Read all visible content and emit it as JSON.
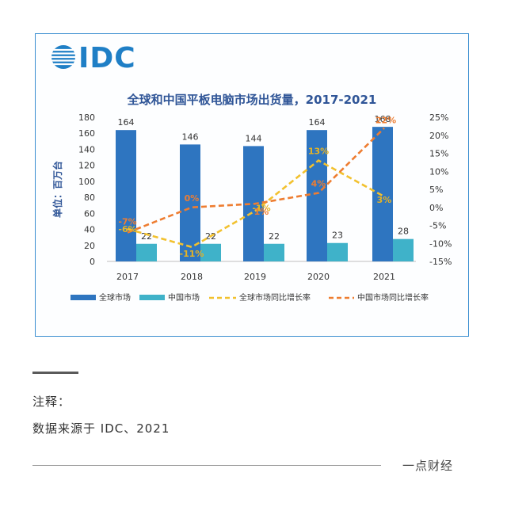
{
  "logo_text": "IDC",
  "chart_data": {
    "type": "bar",
    "title": "全球和中国平板电脑市场出货量，2017-2021",
    "ylabel": "单位：百万台",
    "xlabel": "",
    "categories": [
      "2017",
      "2018",
      "2019",
      "2020",
      "2021"
    ],
    "ylim": [
      0,
      180
    ],
    "yticks": [
      "0",
      "20",
      "40",
      "60",
      "80",
      "100",
      "120",
      "140",
      "160",
      "180"
    ],
    "y2lim": [
      -15,
      25
    ],
    "y2ticks": [
      "-15%",
      "-10%",
      "-5%",
      "0%",
      "5%",
      "10%",
      "15%",
      "20%",
      "25%"
    ],
    "series": [
      {
        "name": "全球市场",
        "kind": "bar",
        "color": "#2e75c0",
        "values": [
          164,
          146,
          144,
          164,
          168
        ],
        "labels": [
          "164",
          "146",
          "144",
          "164",
          "168"
        ]
      },
      {
        "name": "中国市场",
        "kind": "bar",
        "color": "#3fb2c9",
        "values": [
          22,
          22,
          22,
          23,
          28
        ],
        "labels": [
          "22",
          "22",
          "22",
          "23",
          "28"
        ]
      },
      {
        "name": "全球市场同比增长率",
        "kind": "line",
        "axis": "right",
        "color": "#f2c12e",
        "values": [
          -6,
          -11,
          -1,
          13,
          3
        ],
        "labels": [
          "-6%",
          "-11%",
          "-1%",
          "13%",
          "3%"
        ]
      },
      {
        "name": "中国市场同比增长率",
        "kind": "line",
        "axis": "right",
        "color": "#ee7d31",
        "values": [
          -7,
          0,
          1,
          4,
          22
        ],
        "labels": [
          "-7%",
          "0%",
          "1%",
          "4%",
          "22%"
        ]
      }
    ],
    "grid": false,
    "legend": "bottom"
  },
  "footer": {
    "note_label": "注释：",
    "note_text": "数据来源于 IDC、2021",
    "brand": "一点财经"
  }
}
